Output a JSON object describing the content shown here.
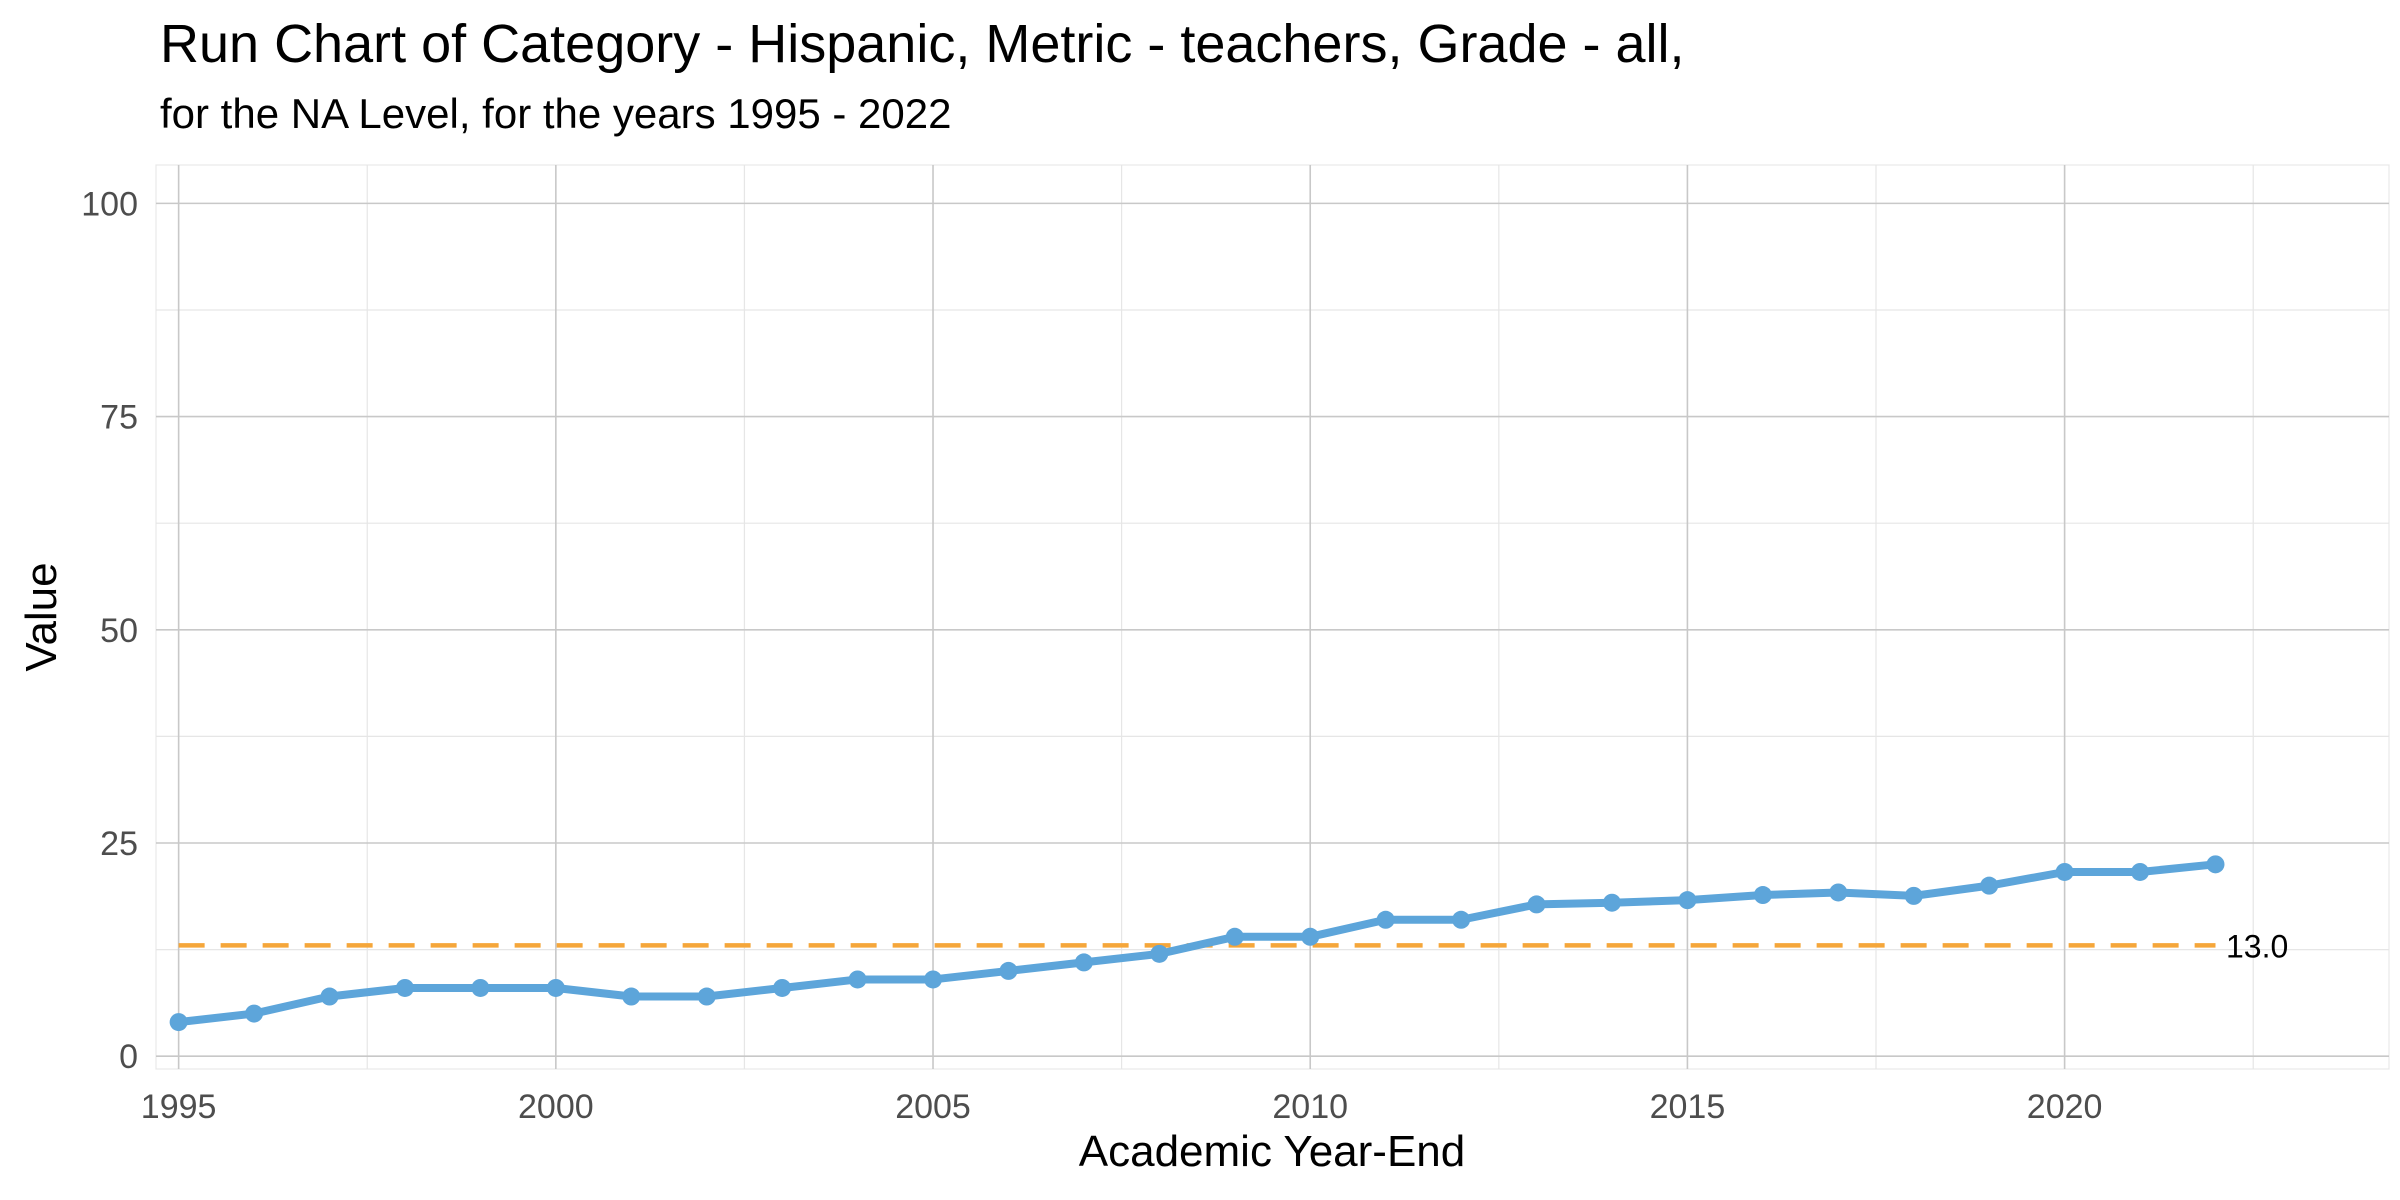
{
  "chart_data": {
    "type": "line",
    "title": "Run Chart of Category -  Hispanic, Metric - teachers, Grade - all,",
    "subtitle": "for the NA Level, for the years 1995 - 2022",
    "xlabel": "Academic Year-End",
    "ylabel": "Value",
    "xlim": [
      1994.7,
      2024.3
    ],
    "ylim": [
      -1.5,
      104.5
    ],
    "x_ticks": [
      1995,
      2000,
      2005,
      2010,
      2015,
      2020
    ],
    "y_ticks": [
      0,
      25,
      50,
      75,
      100
    ],
    "grid": true,
    "legend": "none",
    "x": [
      1995,
      1996,
      1997,
      1998,
      1999,
      2000,
      2001,
      2002,
      2003,
      2004,
      2005,
      2006,
      2007,
      2008,
      2009,
      2010,
      2011,
      2012,
      2013,
      2014,
      2015,
      2016,
      2017,
      2018,
      2019,
      2020,
      2021,
      2022
    ],
    "series": [
      {
        "values": [
          4,
          5,
          7,
          8,
          8,
          8,
          7,
          7,
          8,
          9,
          9,
          10,
          11,
          12,
          14,
          14,
          16,
          16,
          17.8,
          18,
          18.3,
          18.9,
          19.2,
          18.8,
          20,
          21.6,
          21.6,
          22.5
        ],
        "color": "#5da5da"
      }
    ],
    "reference_line": {
      "value": 13.0,
      "label": "13.0",
      "x_range": [
        1995,
        2022
      ],
      "color": "#f5a63a",
      "style": "dashed"
    }
  }
}
